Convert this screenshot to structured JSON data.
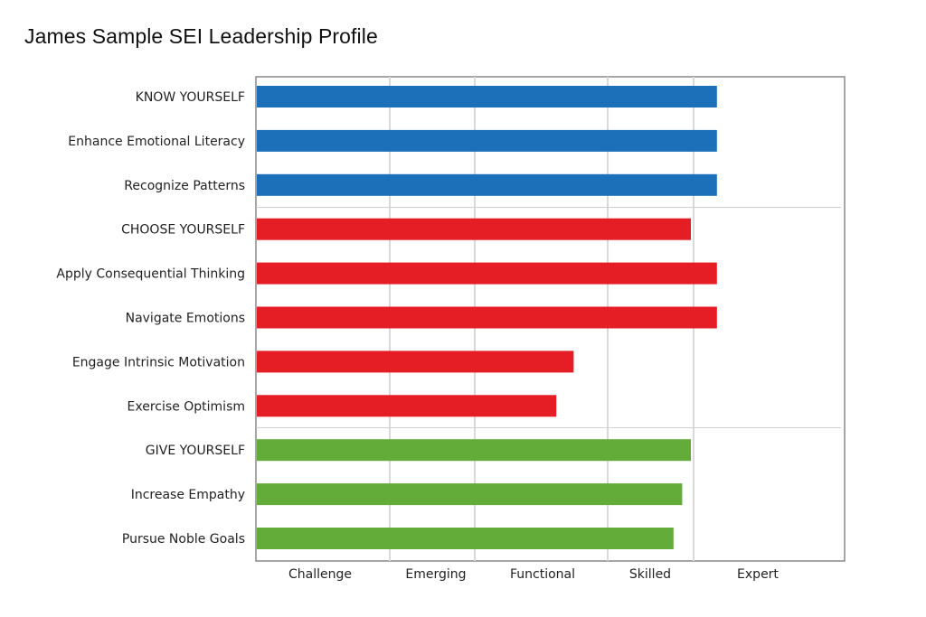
{
  "title": "James Sample SEI Leadership Profile",
  "chart_data": {
    "type": "bar",
    "orientation": "horizontal",
    "title": "James Sample SEI Leadership Profile",
    "xlabel": "",
    "ylabel": "",
    "xlim": [
      0,
      6.75
    ],
    "tick_labels": [
      "Challenge",
      "Emerging",
      "Functional",
      "Skilled",
      "Expert"
    ],
    "categories": [
      "KNOW YOURSELF",
      "Enhance Emotional Literacy",
      "Recognize Patterns",
      "CHOOSE YOURSELF",
      "Apply Consequential Thinking",
      "Navigate Emotions",
      "Engage Intrinsic Motivation",
      "Exercise Optimism",
      "GIVE YOURSELF",
      "Increase Empathy",
      "Pursue Noble Goals"
    ],
    "values": [
      5.3,
      5.3,
      5.3,
      5.0,
      5.3,
      5.3,
      3.65,
      3.45,
      5.0,
      4.9,
      4.8
    ],
    "groups": [
      {
        "categories": [
          0,
          1,
          2
        ],
        "color": "#1c70b9"
      },
      {
        "categories": [
          3,
          4,
          5,
          6,
          7
        ],
        "color": "#e51d24"
      },
      {
        "categories": [
          8,
          9,
          10
        ],
        "color": "#64ac3a"
      }
    ],
    "grid": true
  }
}
